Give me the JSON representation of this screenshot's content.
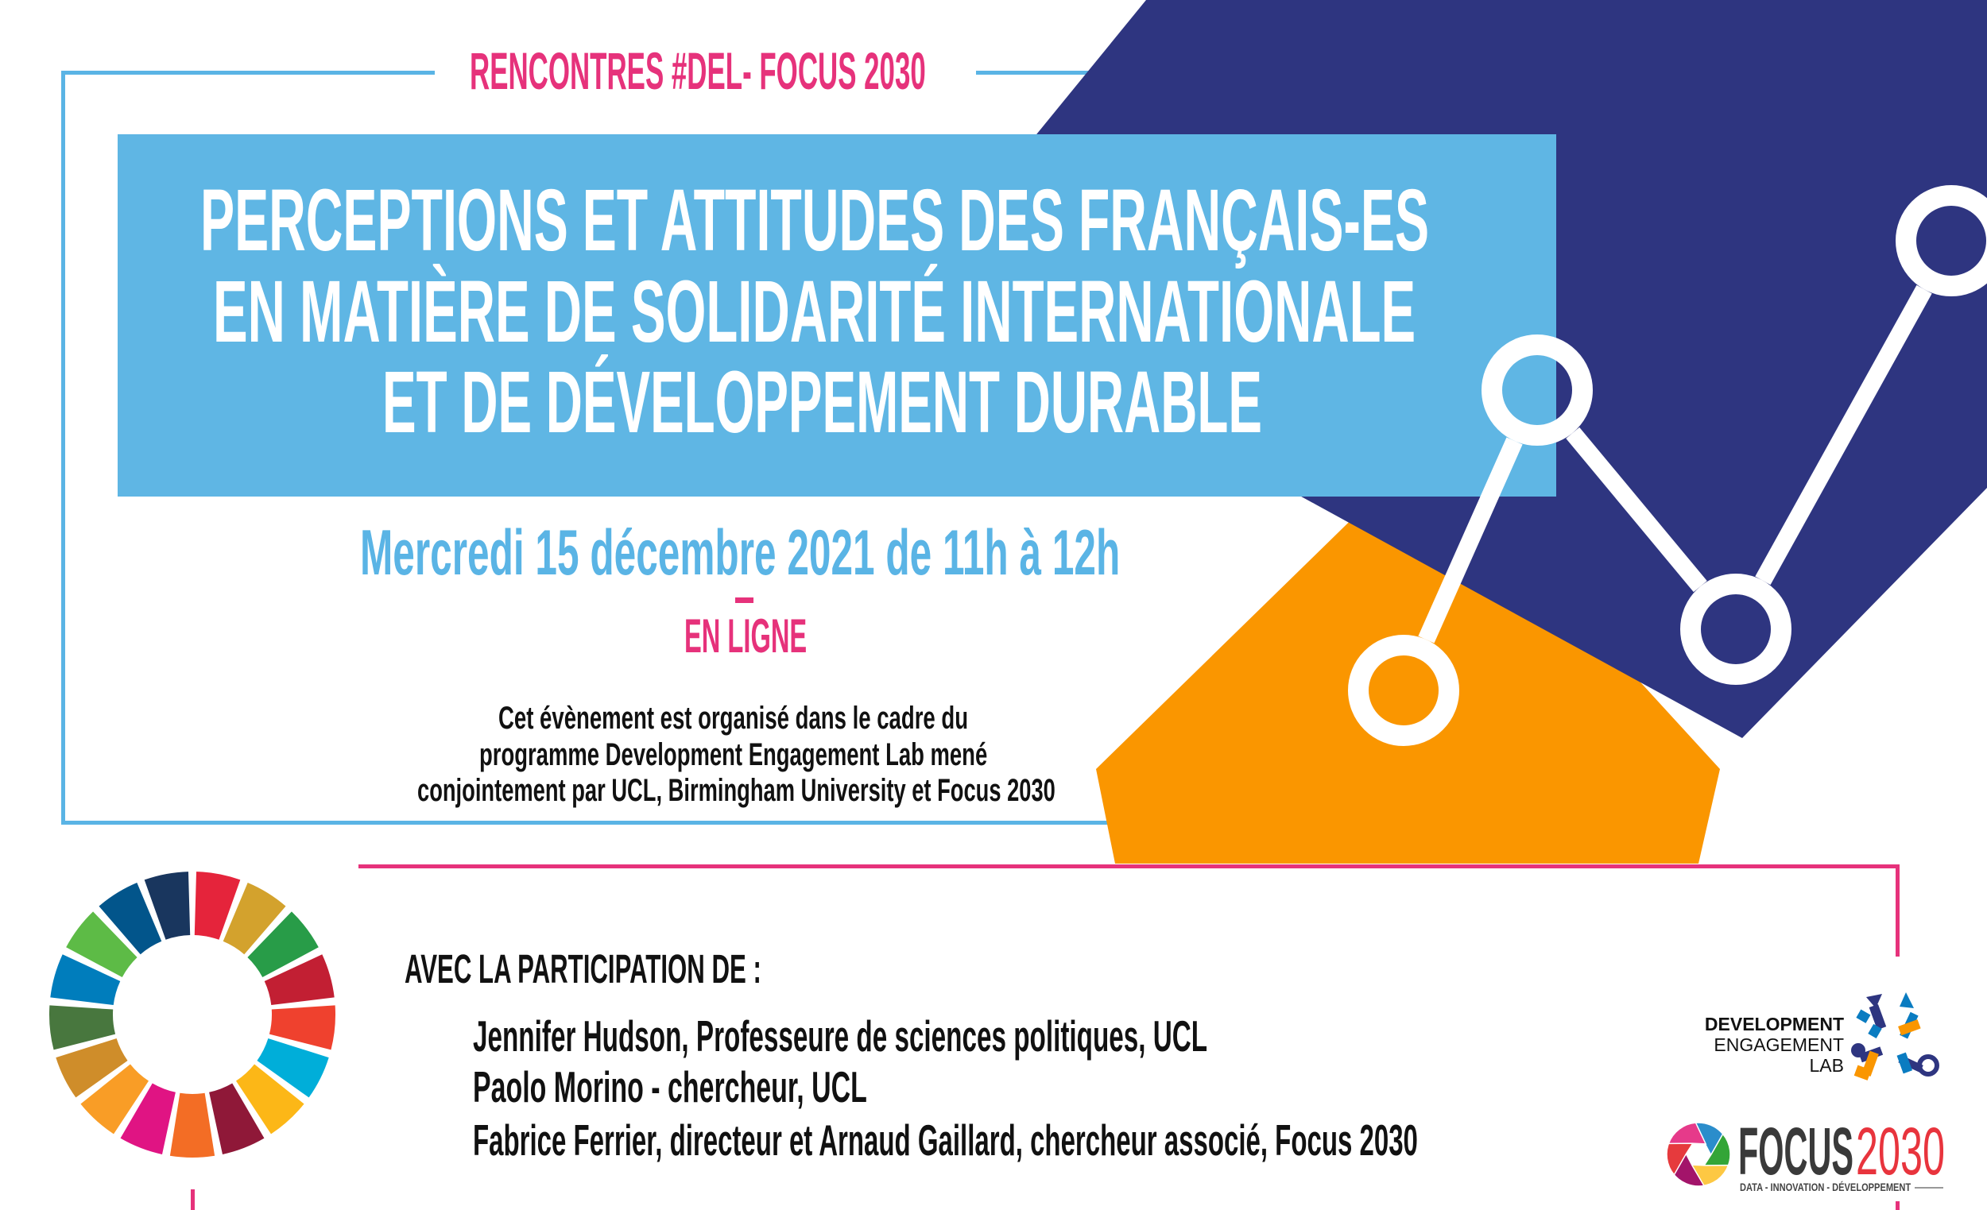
{
  "header": {
    "series_title": "RENCONTRES #DEL- FOCUS 2030"
  },
  "title": {
    "lines": [
      "PERCEPTIONS ET ATTITUDES DES FRANÇAIS-ES",
      "EN MATIÈRE DE SOLIDARITÉ INTERNATIONALE",
      "ET DE DÉVELOPPEMENT DURABLE"
    ]
  },
  "event": {
    "date": "Mercredi 15 décembre 2021 de 11h à 12h",
    "mode": "EN LIGNE"
  },
  "organisation_note": {
    "lines": [
      "Cet évènement est organisé dans le cadre du",
      "programme Development Engagement Lab mené",
      "conjointement par UCL, Birmingham University et Focus 2030"
    ]
  },
  "participants": {
    "heading": "AVEC LA PARTICIPATION DE :",
    "lines": [
      "Jennifer Hudson, Professeure de sciences politiques, UCL",
      "Paolo Morino - chercheur, UCL",
      "Fabrice Ferrier, directeur et Arnaud Gaillard, chercheur associé, Focus 2030"
    ]
  },
  "logos": {
    "del": {
      "lines": [
        "DEVELOPMENT",
        "ENGAGEMENT",
        "LAB"
      ]
    },
    "focus": {
      "word": "FOCUS",
      "year": "2030",
      "tagline": "DATA - INNOVATION - DÉVELOPPEMENT"
    }
  },
  "colors": {
    "pink": "#e6327b",
    "light_blue": "#5fb6e4",
    "navy": "#2e3580",
    "orange": "#fa9600"
  },
  "sdg_wheel": {
    "colors": [
      "#e5243b",
      "#d3a22d",
      "#289c48",
      "#c21f33",
      "#ef412e",
      "#00aed9",
      "#fcb717",
      "#8f1838",
      "#f36d25",
      "#e01483",
      "#f99d26",
      "#cf8d2a",
      "#48773e",
      "#007dbc",
      "#5dbb46",
      "#02558b",
      "#19365e"
    ]
  }
}
